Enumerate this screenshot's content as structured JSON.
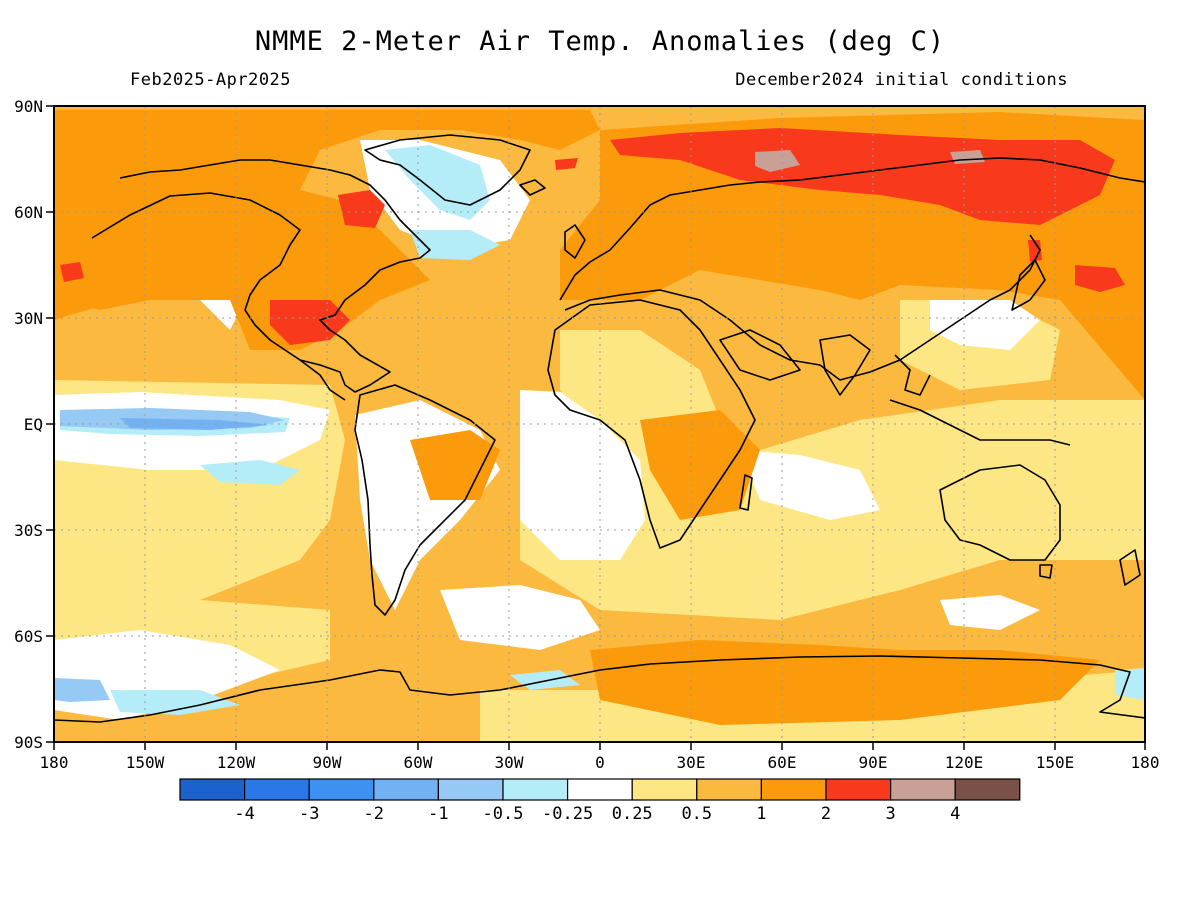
{
  "header": {
    "title": "NMME 2-Meter Air Temp. Anomalies (deg C)",
    "period": "Feb2025-Apr2025",
    "init": "December2024 initial conditions"
  },
  "axes": {
    "lat_labels": [
      "90N",
      "60N",
      "30N",
      "EQ",
      "30S",
      "60S",
      "90S"
    ],
    "lon_labels": [
      "180",
      "150W",
      "120W",
      "90W",
      "60W",
      "30W",
      "0",
      "30E",
      "60E",
      "90E",
      "120E",
      "150E",
      "180"
    ],
    "grid": "dotted"
  },
  "legend": {
    "colors": [
      "#1c62cc",
      "#2a78e8",
      "#3d91f0",
      "#72b2f4",
      "#96c9f4",
      "#b4ecf8",
      "#ffffff",
      "#fde784",
      "#fbb93f",
      "#fb9a0b",
      "#f8391c",
      "#c9a096",
      "#7a5146"
    ],
    "labels": [
      "-4",
      "-3",
      "-2",
      "-1",
      "-0.5",
      "-0.25",
      "0.25",
      "0.5",
      "1",
      "2",
      "3",
      "4"
    ]
  },
  "palette": {
    "warm_0_5_1": "#fbb93f",
    "warm_1_2": "#fb9a0b",
    "warm_2_3": "#f8391c",
    "mild": "#fde784",
    "cool": "#b4ecf8",
    "cold": "#72b2f4",
    "colder": "#96c9f4",
    "brown": "#c9a096"
  }
}
